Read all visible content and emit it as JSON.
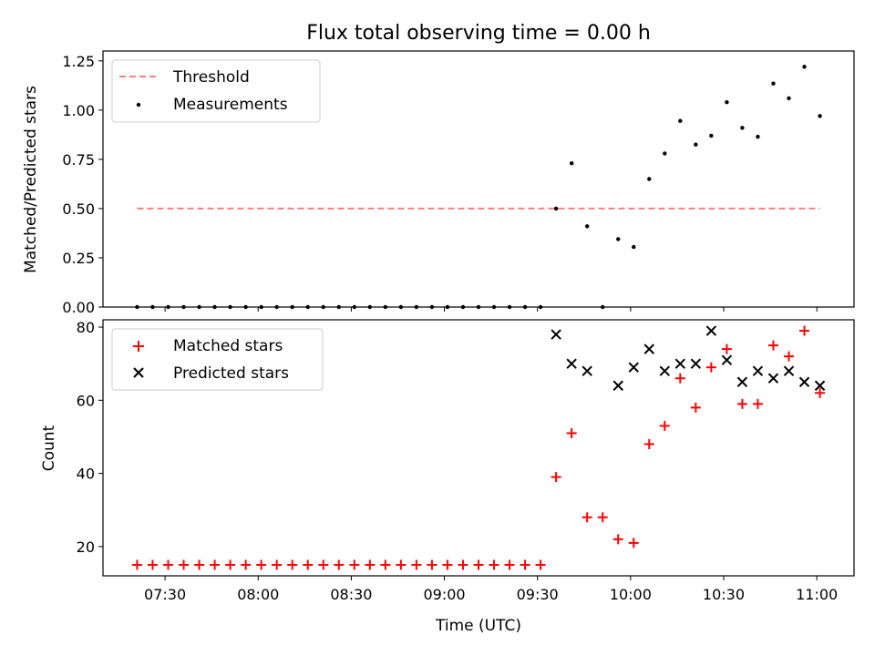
{
  "chart_data": [
    {
      "type": "scatter",
      "title": "Flux total observing time = 0.00 h",
      "xlabel": "",
      "ylabel": "Matched/Predicted stars",
      "xlim": [
        "07:10",
        "11:12"
      ],
      "ylim": [
        0,
        1.3
      ],
      "yticks": [
        0.0,
        0.25,
        0.5,
        0.75,
        1.0,
        1.25
      ],
      "ytick_labels": [
        "0.00",
        "0.25",
        "0.50",
        "0.75",
        "1.00",
        "1.25"
      ],
      "xticks": [
        "07:30",
        "08:00",
        "08:30",
        "09:00",
        "09:30",
        "10:00",
        "10:30",
        "11:00"
      ],
      "xtick_labels_shown": false,
      "legend_position": "upper-left",
      "threshold": {
        "name": "Threshold",
        "y": 0.5,
        "x_start": "07:21",
        "x_end": "11:01",
        "color": "#ff7f7f",
        "style": "dashed"
      },
      "series": [
        {
          "name": "Measurements",
          "color": "#000000",
          "marker": "dot",
          "x": [
            "07:21",
            "07:26",
            "07:31",
            "07:36",
            "07:41",
            "07:46",
            "07:51",
            "07:56",
            "08:01",
            "08:06",
            "08:11",
            "08:16",
            "08:21",
            "08:26",
            "08:31",
            "08:36",
            "08:41",
            "08:46",
            "08:51",
            "08:56",
            "09:01",
            "09:06",
            "09:11",
            "09:16",
            "09:21",
            "09:26",
            "09:31",
            "09:36",
            "09:41",
            "09:46",
            "09:51",
            "09:56",
            "10:01",
            "10:06",
            "10:11",
            "10:16",
            "10:21",
            "10:26",
            "10:31",
            "10:36",
            "10:41",
            "10:46",
            "10:51",
            "10:56",
            "11:01"
          ],
          "y": [
            0,
            0,
            0,
            0,
            0,
            0,
            0,
            0,
            0,
            0,
            0,
            0,
            0,
            0,
            0,
            0,
            0,
            0,
            0,
            0,
            0,
            0,
            0,
            0,
            0,
            0,
            0,
            0.5,
            0.73,
            0.41,
            0,
            0.345,
            0.305,
            0.65,
            0.78,
            0.945,
            0.825,
            0.87,
            1.04,
            0.91,
            0.865,
            1.135,
            1.06,
            1.22,
            0.97
          ]
        }
      ]
    },
    {
      "type": "scatter",
      "title": "",
      "xlabel": "Time (UTC)",
      "ylabel": "Count",
      "xlim": [
        "07:10",
        "11:12"
      ],
      "ylim": [
        12,
        82
      ],
      "yticks": [
        20,
        40,
        60,
        80
      ],
      "ytick_labels": [
        "20",
        "40",
        "60",
        "80"
      ],
      "xticks": [
        "07:30",
        "08:00",
        "08:30",
        "09:00",
        "09:30",
        "10:00",
        "10:30",
        "11:00"
      ],
      "xtick_labels": [
        "07:30",
        "08:00",
        "08:30",
        "09:00",
        "09:30",
        "10:00",
        "10:30",
        "11:00"
      ],
      "legend_position": "upper-left",
      "series": [
        {
          "name": "Matched stars",
          "color": "#ff0000",
          "marker": "plus",
          "x": [
            "07:21",
            "07:26",
            "07:31",
            "07:36",
            "07:41",
            "07:46",
            "07:51",
            "07:56",
            "08:01",
            "08:06",
            "08:11",
            "08:16",
            "08:21",
            "08:26",
            "08:31",
            "08:36",
            "08:41",
            "08:46",
            "08:51",
            "08:56",
            "09:01",
            "09:06",
            "09:11",
            "09:16",
            "09:21",
            "09:26",
            "09:31",
            "09:36",
            "09:41",
            "09:46",
            "09:51",
            "09:56",
            "10:01",
            "10:06",
            "10:11",
            "10:16",
            "10:21",
            "10:26",
            "10:31",
            "10:36",
            "10:41",
            "10:46",
            "10:51",
            "10:56",
            "11:01"
          ],
          "y": [
            15,
            15,
            15,
            15,
            15,
            15,
            15,
            15,
            15,
            15,
            15,
            15,
            15,
            15,
            15,
            15,
            15,
            15,
            15,
            15,
            15,
            15,
            15,
            15,
            15,
            15,
            15,
            39,
            51,
            28,
            28,
            22,
            21,
            48,
            53,
            66,
            58,
            69,
            74,
            59,
            59,
            75,
            72,
            79,
            62
          ]
        },
        {
          "name": "Predicted stars",
          "color": "#000000",
          "marker": "x",
          "x": [
            "09:36",
            "09:41",
            "09:46",
            "09:56",
            "10:01",
            "10:06",
            "10:11",
            "10:16",
            "10:21",
            "10:26",
            "10:31",
            "10:36",
            "10:41",
            "10:46",
            "10:51",
            "10:56",
            "11:01"
          ],
          "y": [
            78,
            70,
            68,
            64,
            69,
            74,
            68,
            70,
            70,
            79,
            71,
            65,
            68,
            66,
            68,
            65,
            64
          ]
        }
      ]
    }
  ]
}
